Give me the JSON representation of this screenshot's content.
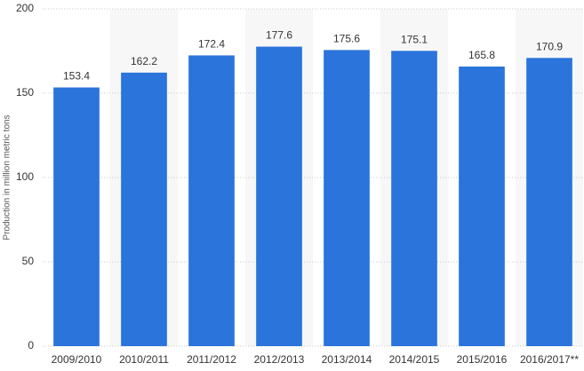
{
  "chart_data": {
    "type": "bar",
    "y_label": "Production in million metric tons",
    "categories": [
      "2009/2010",
      "2010/2011",
      "2011/2012",
      "2012/2013",
      "2013/2014",
      "2014/2015",
      "2015/2016",
      "2016/2017**"
    ],
    "values": [
      153.4,
      162.2,
      172.4,
      177.6,
      175.6,
      175.1,
      165.8,
      170.9
    ],
    "color": "#2a74db",
    "ylim": [
      0,
      200
    ],
    "yticks": [
      0,
      50,
      100,
      150,
      200
    ],
    "grid": true
  }
}
